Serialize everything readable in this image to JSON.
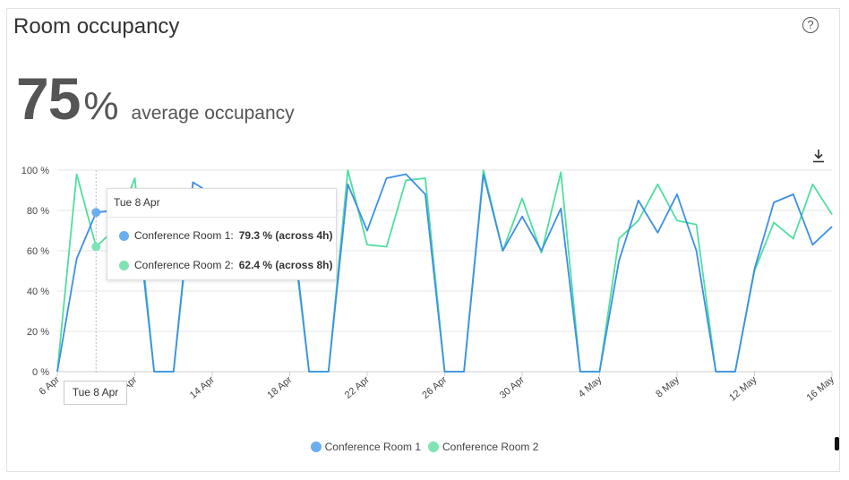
{
  "title": "Room occupancy",
  "help_icon": "?",
  "summary": {
    "value": "75",
    "unit": "%",
    "caption": "average occupancy"
  },
  "tooltip": {
    "header": "Tue 8 Apr",
    "rows": [
      {
        "label": "Conference Room 1:",
        "value": "79.3 % (across 4h)"
      },
      {
        "label": "Conference Room 2:",
        "value": "62.4 % (across 8h)"
      }
    ],
    "x_label": "Tue 8 Apr"
  },
  "chart_data": {
    "type": "line",
    "x": [
      "6 Apr",
      "7 Apr",
      "8 Apr",
      "9 Apr",
      "10 Apr",
      "11 Apr",
      "12 Apr",
      "13 Apr",
      "14 Apr",
      "15 Apr",
      "16 Apr",
      "17 Apr",
      "18 Apr",
      "19 Apr",
      "20 Apr",
      "21 Apr",
      "22 Apr",
      "23 Apr",
      "24 Apr",
      "25 Apr",
      "26 Apr",
      "27 Apr",
      "28 Apr",
      "29 Apr",
      "30 Apr",
      "1 May",
      "2 May",
      "3 May",
      "4 May",
      "5 May",
      "6 May",
      "7 May",
      "8 May",
      "9 May",
      "10 May",
      "11 May",
      "12 May",
      "13 May",
      "14 May",
      "15 May",
      "16 May"
    ],
    "x_tick_labels": [
      "6 Apr",
      "10 Apr",
      "14 Apr",
      "18 Apr",
      "22 Apr",
      "26 Apr",
      "30 Apr",
      "4 May",
      "8 May",
      "12 May",
      "16 May"
    ],
    "y_tick_labels": [
      "0 %",
      "20 %",
      "40 %",
      "60 %",
      "80 %",
      "100 %"
    ],
    "ylim": [
      0,
      100
    ],
    "grid": true,
    "legend_position": "bottom",
    "series": [
      {
        "name": "Conference Room 1",
        "color": "#3d8fe6",
        "values": [
          0,
          56,
          79,
          80,
          88,
          0,
          0,
          94,
          88,
          88,
          88,
          88,
          85,
          0,
          0,
          93,
          70,
          96,
          98,
          88,
          0,
          0,
          98,
          60,
          77,
          60,
          81,
          0,
          0,
          55,
          85,
          69,
          88,
          60,
          0,
          0,
          51,
          84,
          88,
          63,
          72
        ]
      },
      {
        "name": "Conference Room 2",
        "color": "#4fdf9e",
        "values": [
          0,
          98,
          62,
          71,
          96,
          0,
          0,
          90,
          87,
          87,
          87,
          87,
          80,
          0,
          0,
          100,
          63,
          62,
          95,
          96,
          0,
          0,
          100,
          60,
          86,
          59,
          99,
          0,
          0,
          66,
          75,
          93,
          75,
          73,
          0,
          0,
          50,
          74,
          66,
          93,
          78
        ]
      }
    ],
    "legend_markers": [
      "#6aaef0",
      "#7ee3b5"
    ]
  }
}
